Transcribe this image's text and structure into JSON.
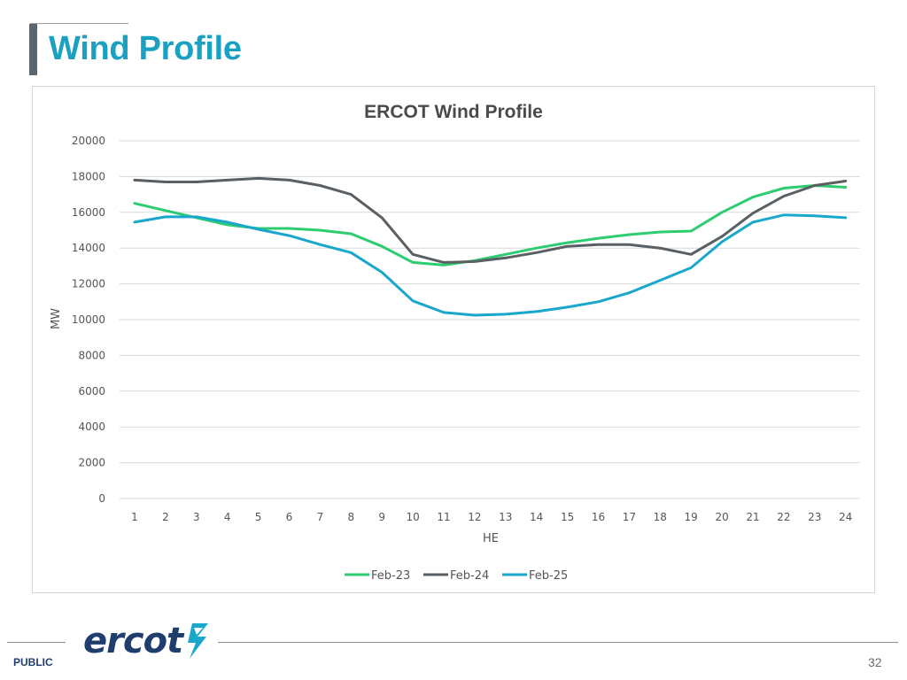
{
  "slide": {
    "title": "Wind Profile",
    "footer_label": "PUBLIC",
    "page_number": "32",
    "logo_text": "ercot",
    "logo_icon": "ercot-lightning-icon"
  },
  "colors": {
    "title": "#1aa0c0",
    "feb23": "#2ecc71",
    "feb24": "#595f63",
    "feb25": "#19a7cc",
    "grid": "#d9d9d9",
    "logo": "#1f3e6e",
    "logo_accent": "#19a7cc"
  },
  "chart_data": {
    "type": "line",
    "title": "ERCOT Wind Profile",
    "xlabel": "HE",
    "ylabel": "MW",
    "x": [
      1,
      2,
      3,
      4,
      5,
      6,
      7,
      8,
      9,
      10,
      11,
      12,
      13,
      14,
      15,
      16,
      17,
      18,
      19,
      20,
      21,
      22,
      23,
      24
    ],
    "ylim": [
      0,
      20000
    ],
    "yticks": [
      0,
      2000,
      4000,
      6000,
      8000,
      10000,
      12000,
      14000,
      16000,
      18000,
      20000
    ],
    "grid": true,
    "legend_position": "bottom",
    "series": [
      {
        "name": "Feb-23",
        "color": "#2ecc71",
        "values": [
          16500,
          16100,
          15700,
          15300,
          15100,
          15100,
          15000,
          14800,
          14100,
          13200,
          13050,
          13300,
          13650,
          14000,
          14300,
          14550,
          14750,
          14900,
          14950,
          16000,
          16850,
          17350,
          17500,
          17400
        ]
      },
      {
        "name": "Feb-24",
        "color": "#595f63",
        "values": [
          17800,
          17700,
          17700,
          17800,
          17900,
          17800,
          17500,
          17000,
          15700,
          13650,
          13200,
          13250,
          13450,
          13750,
          14100,
          14200,
          14200,
          14000,
          13650,
          14650,
          15950,
          16900,
          17500,
          17750
        ]
      },
      {
        "name": "Feb-25",
        "color": "#19a7cc",
        "values": [
          15450,
          15750,
          15750,
          15450,
          15050,
          14700,
          14200,
          13750,
          12650,
          11050,
          10400,
          10250,
          10300,
          10450,
          10700,
          11000,
          11500,
          12200,
          12900,
          14350,
          15450,
          15850,
          15800,
          15700
        ]
      }
    ]
  }
}
